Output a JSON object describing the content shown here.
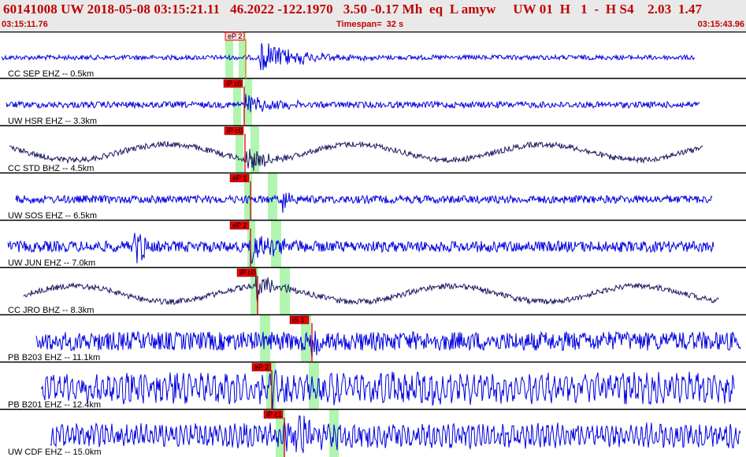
{
  "header": {
    "event_line": "60141008 UW 2018-05-08 03:15:21.11   46.2022 -122.1970   3.50 -0.17 Mh  eq  L amyw     UW 01  H   1  -  H S4    2.03  1.47",
    "start_time": "03:15:11.76",
    "timespan": "Timespan=  32 s",
    "end_time": "03:15:43.96"
  },
  "colors": {
    "header_bg": "#e9e9e9",
    "header_text": "#c00000",
    "trace_ehz": "#0000e0",
    "trace_bhz": "#1a1a60",
    "pick_box": "#e80000",
    "phase_band": "#a8f4a8"
  },
  "channels": [
    {
      "label": "CC SEP EHZ -- 0.5km",
      "pick": "eP 2",
      "type": "EHZ"
    },
    {
      "label": "UW HSR EHZ -- 3.3km",
      "pick": "iP c0",
      "type": "EHZ"
    },
    {
      "label": "CC STD BHZ -- 4.5km",
      "pick": "iP c0",
      "type": "BHZ"
    },
    {
      "label": "UW SOS EHZ -- 6.5km",
      "pick": "eP 1",
      "type": "EHZ"
    },
    {
      "label": "UW JUN EHZ -- 7.0km",
      "pick": "eP 2",
      "type": "EHZ"
    },
    {
      "label": "CC JRO BHZ -- 8.3km",
      "pick": "iP c0",
      "type": "BHZ"
    },
    {
      "label": "PB B203 EHZ -- 11.1km",
      "pick": "iS 1",
      "type": "EHZ"
    },
    {
      "label": "PB B201 EHZ -- 12.4km",
      "pick": "eP 2",
      "type": "EHZ"
    },
    {
      "label": "UW CDF EHZ -- 15.0km",
      "pick": "iP c1",
      "type": "EHZ"
    }
  ]
}
